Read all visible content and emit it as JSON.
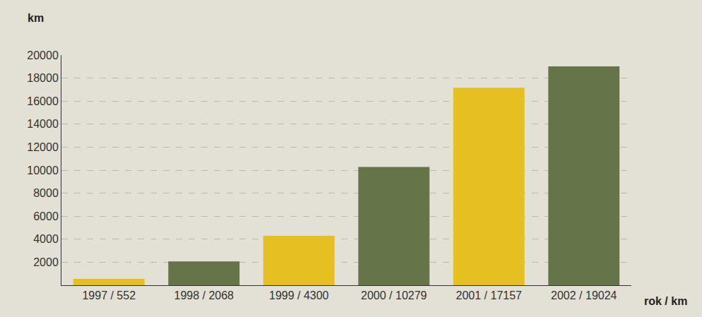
{
  "chart_data": {
    "type": "bar",
    "y_label": "km",
    "x_label": "rok / km",
    "categories": [
      "1997 / 552",
      "1998 / 2068",
      "1999 / 4300",
      "2000 / 10279",
      "2001 / 17157",
      "2002 / 19024"
    ],
    "values": [
      552,
      2068,
      4300,
      10279,
      17157,
      19024
    ],
    "colors": [
      "#e6c020",
      "#66744a",
      "#e6c020",
      "#66744a",
      "#e6c020",
      "#66744a"
    ],
    "ylim": [
      0,
      20000
    ],
    "yticks": [
      2000,
      4000,
      6000,
      8000,
      10000,
      12000,
      14000,
      16000,
      18000,
      20000
    ],
    "grid": true
  }
}
